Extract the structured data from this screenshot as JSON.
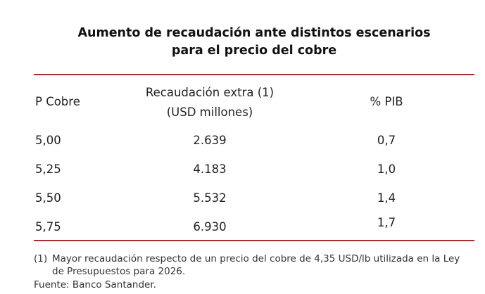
{
  "title": {
    "line1": "Aumento de recaudación ante distintos escenarios",
    "line2": "para el precio del cobre"
  },
  "table": {
    "headers": {
      "col1": "P Cobre",
      "col2_line1": "Recaudación extra (1)",
      "col2_line2": "(USD millones)",
      "col3": "% PIB"
    },
    "rows": [
      {
        "price": "5,00",
        "revenue": "2.639",
        "pib": "0,7"
      },
      {
        "price": "5,25",
        "revenue": "4.183",
        "pib": "1,0"
      },
      {
        "price": "5,50",
        "revenue": "5.532",
        "pib": "1,4"
      },
      {
        "price": "5,75",
        "revenue": "6.930",
        "pib": "1,7"
      }
    ]
  },
  "footnotes": {
    "note_marker": "(1)",
    "note_line1": "Mayor recaudación respecto de un precio del cobre de 4,35 USD/lb utilizada en la Ley",
    "note_line2": "de Presupuestos para 2026.",
    "source": "Fuente: Banco Santander."
  },
  "colors": {
    "rule": "#e3141b",
    "text": "#222222"
  }
}
